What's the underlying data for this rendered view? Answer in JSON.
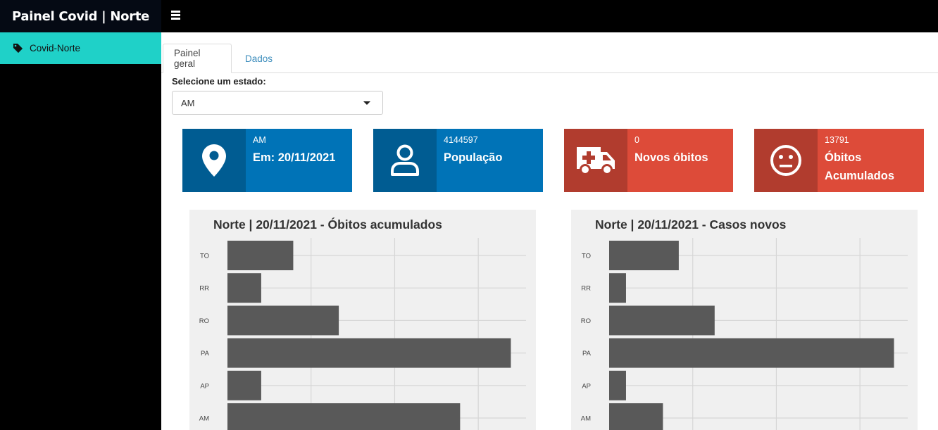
{
  "app": {
    "brand": "Painel Covid | Norte"
  },
  "sidebar": {
    "items": [
      {
        "label": "Covid-Norte",
        "icon": "tag-icon"
      }
    ]
  },
  "tabs": [
    {
      "label": "Painel geral",
      "active": true
    },
    {
      "label": "Dados",
      "active": false
    }
  ],
  "state_select": {
    "label": "Selecione um estado:",
    "value": "AM"
  },
  "infoboxes": [
    {
      "number": "AM",
      "text": "Em: 20/11/2021",
      "icon": "map-marker-icon",
      "color": "#0073b7"
    },
    {
      "number": "4144597",
      "text": "População",
      "icon": "user-icon",
      "color": "#0073b7"
    },
    {
      "number": "0",
      "text": "Novos óbitos",
      "icon": "ambulance-icon",
      "color": "#dd4b39"
    },
    {
      "number": "13791",
      "text": "Óbitos Acumulados",
      "icon": "meh-face-icon",
      "color": "#dd4b39"
    }
  ],
  "chart_data": [
    {
      "type": "bar",
      "orientation": "horizontal",
      "title": "Norte | 20/11/2021 - Óbitos acumulados",
      "categories": [
        "TO",
        "RR",
        "RO",
        "PA",
        "AP",
        "AM"
      ],
      "values": [
        3900,
        2000,
        6600,
        16800,
        2000,
        13791
      ],
      "xlim": [
        0,
        17700
      ],
      "grid": true,
      "bar_color": "#595959"
    },
    {
      "type": "bar",
      "orientation": "horizontal",
      "title": "Norte | 20/11/2021 - Casos novos",
      "categories": [
        "TO",
        "RR",
        "RO",
        "PA",
        "AP",
        "AM"
      ],
      "values": [
        66,
        16,
        100,
        270,
        16,
        51
      ],
      "xlim": [
        0,
        283
      ],
      "grid": true,
      "bar_color": "#595959"
    }
  ]
}
